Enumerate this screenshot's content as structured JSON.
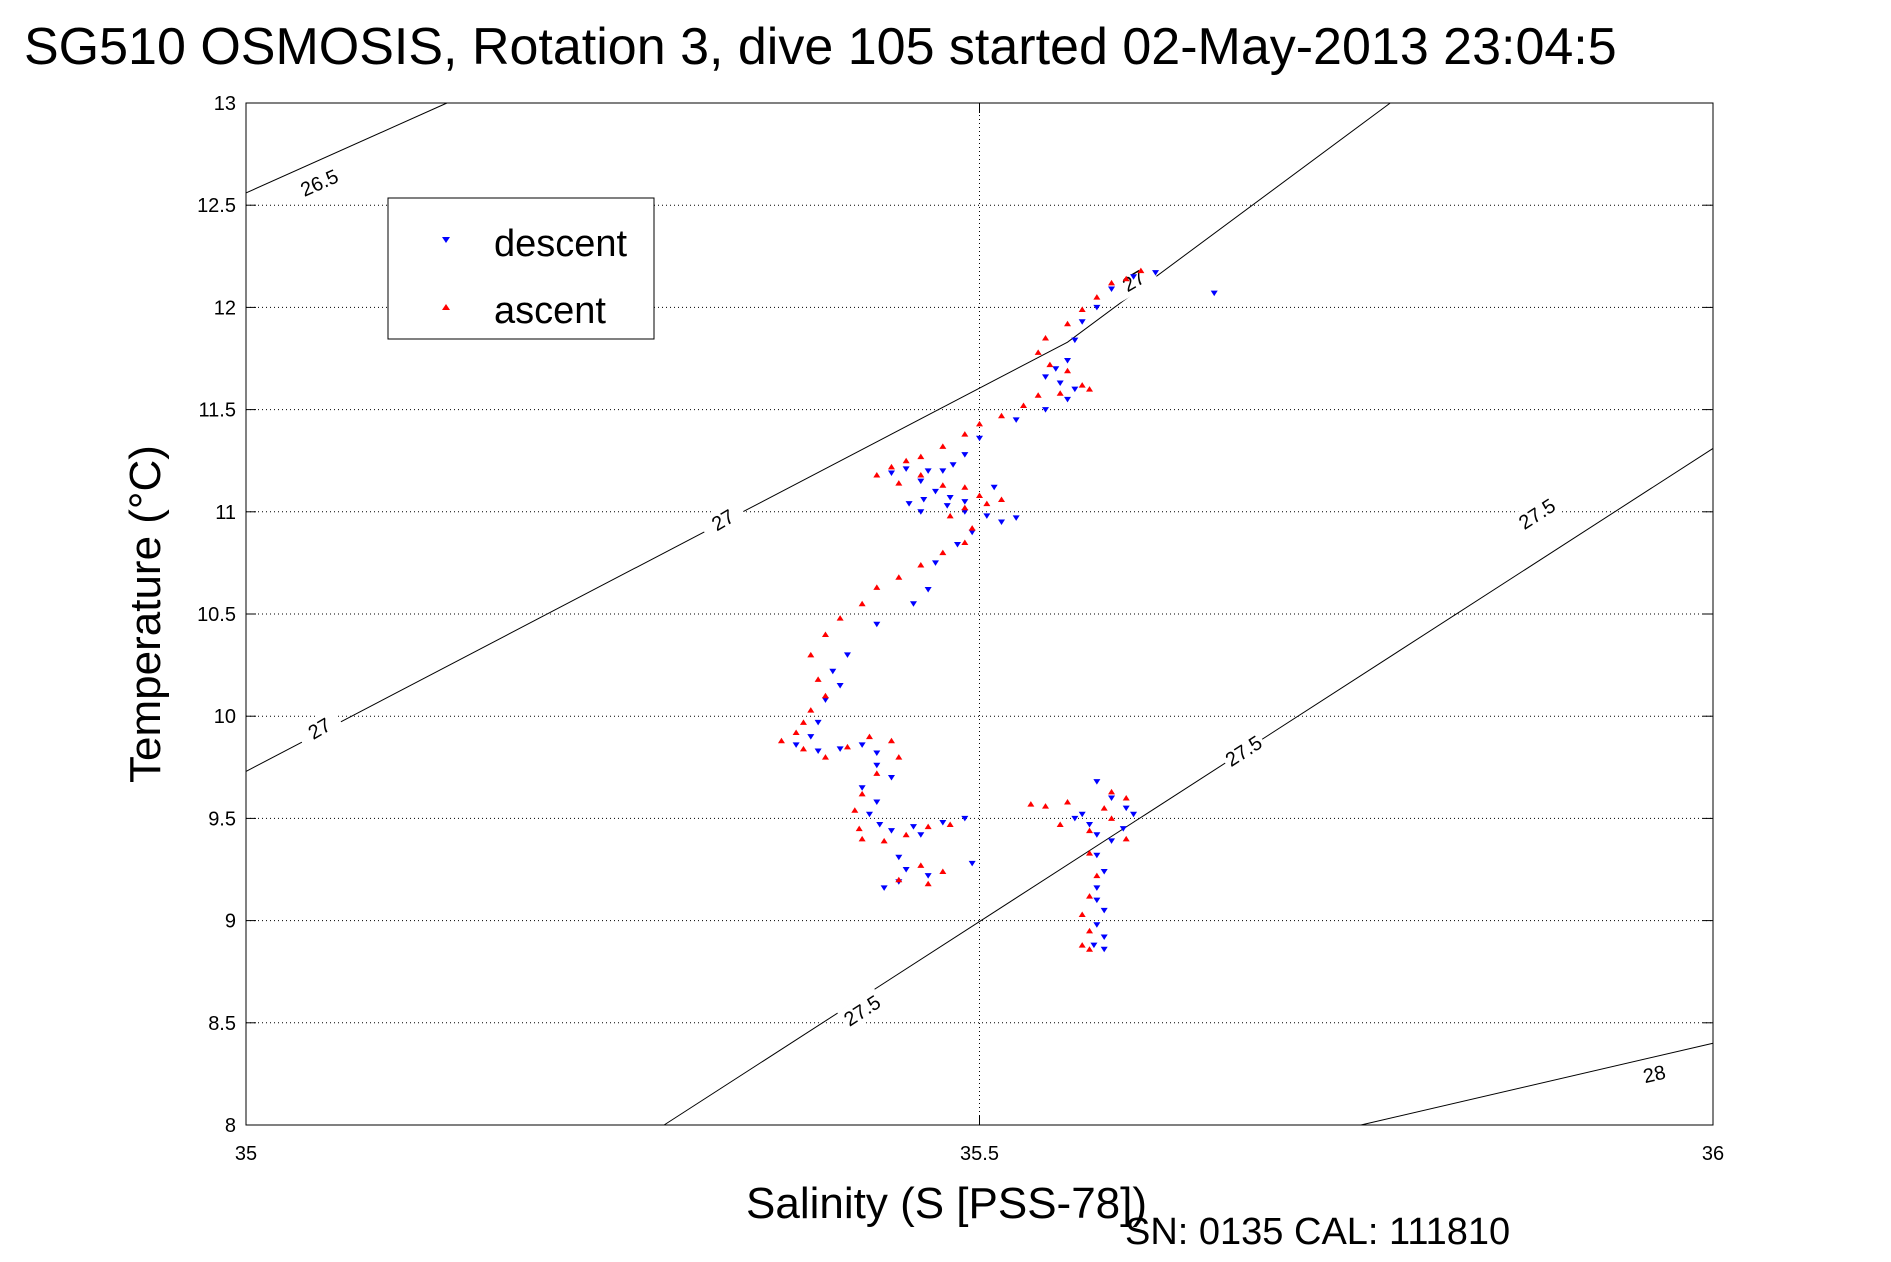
{
  "chart_data": {
    "type": "scatter",
    "title": "SG510 OSMOSIS, Rotation 3, dive 105 started 02-May-2013 23:04:5",
    "xlabel": "Salinity (S [PSS-78])",
    "ylabel": "Temperature (°C)",
    "xlim": [
      35,
      36
    ],
    "ylim": [
      8,
      13
    ],
    "x_ticks": [
      35,
      35.5,
      36
    ],
    "x_tick_labels": [
      "35",
      "35.5",
      "36"
    ],
    "y_ticks": [
      8,
      8.5,
      9,
      9.5,
      10,
      10.5,
      11,
      11.5,
      12,
      12.5,
      13
    ],
    "y_tick_labels": [
      "8",
      "8.5",
      "9",
      "9.5",
      "10",
      "10.5",
      "11",
      "11.5",
      "12",
      "12.5",
      "13"
    ],
    "grid": true,
    "grid_style": "dotted",
    "legend_position": "top-left",
    "footer_text": "SN: 0135  CAL: 111810",
    "density_contours": [
      {
        "label": "26.5",
        "points": [
          [
            35,
            12.56
          ],
          [
            35.137,
            13
          ]
        ],
        "label_at": [
          [
            35.05,
            12.61
          ]
        ]
      },
      {
        "label": "27",
        "points": [
          [
            35,
            9.73
          ],
          [
            35.56,
            11.83
          ],
          [
            35.78,
            13
          ]
        ],
        "label_at": [
          [
            35.05,
            9.94
          ],
          [
            35.325,
            10.96
          ],
          [
            35.605,
            12.13
          ]
        ]
      },
      {
        "label": "27.5",
        "points": [
          [
            35.285,
            8
          ],
          [
            36,
            11.31
          ]
        ],
        "label_at": [
          [
            35.42,
            8.56
          ],
          [
            35.68,
            9.83
          ],
          [
            35.88,
            10.99
          ]
        ]
      },
      {
        "label": "28",
        "points": [
          [
            35.76,
            8
          ],
          [
            36,
            8.4
          ]
        ],
        "label_at": [
          [
            35.96,
            8.25
          ]
        ]
      }
    ],
    "series": [
      {
        "name": "descent",
        "color": "#0000ff",
        "marker": "triangle-down",
        "points": [
          [
            35.66,
            12.07
          ],
          [
            35.62,
            12.17
          ],
          [
            35.605,
            12.15
          ],
          [
            35.59,
            12.09
          ],
          [
            35.58,
            12.0
          ],
          [
            35.57,
            11.93
          ],
          [
            35.565,
            11.84
          ],
          [
            35.56,
            11.74
          ],
          [
            35.552,
            11.7
          ],
          [
            35.545,
            11.66
          ],
          [
            35.555,
            11.63
          ],
          [
            35.565,
            11.6
          ],
          [
            35.56,
            11.55
          ],
          [
            35.545,
            11.5
          ],
          [
            35.525,
            11.45
          ],
          [
            35.5,
            11.36
          ],
          [
            35.49,
            11.28
          ],
          [
            35.482,
            11.23
          ],
          [
            35.475,
            11.2
          ],
          [
            35.465,
            11.2
          ],
          [
            35.45,
            11.21
          ],
          [
            35.44,
            11.19
          ],
          [
            35.46,
            11.15
          ],
          [
            35.47,
            11.1
          ],
          [
            35.48,
            11.07
          ],
          [
            35.49,
            11.05
          ],
          [
            35.478,
            11.03
          ],
          [
            35.462,
            11.06
          ],
          [
            35.452,
            11.04
          ],
          [
            35.46,
            11.0
          ],
          [
            35.49,
            11.0
          ],
          [
            35.505,
            10.98
          ],
          [
            35.515,
            10.95
          ],
          [
            35.525,
            10.97
          ],
          [
            35.51,
            11.12
          ],
          [
            35.495,
            10.9
          ],
          [
            35.485,
            10.84
          ],
          [
            35.47,
            10.75
          ],
          [
            35.465,
            10.62
          ],
          [
            35.455,
            10.55
          ],
          [
            35.43,
            10.45
          ],
          [
            35.41,
            10.3
          ],
          [
            35.4,
            10.22
          ],
          [
            35.405,
            10.15
          ],
          [
            35.395,
            10.08
          ],
          [
            35.39,
            9.97
          ],
          [
            35.385,
            9.9
          ],
          [
            35.375,
            9.86
          ],
          [
            35.39,
            9.83
          ],
          [
            35.405,
            9.84
          ],
          [
            35.42,
            9.86
          ],
          [
            35.43,
            9.82
          ],
          [
            35.43,
            9.76
          ],
          [
            35.44,
            9.7
          ],
          [
            35.42,
            9.65
          ],
          [
            35.43,
            9.58
          ],
          [
            35.425,
            9.52
          ],
          [
            35.432,
            9.47
          ],
          [
            35.44,
            9.44
          ],
          [
            35.455,
            9.46
          ],
          [
            35.475,
            9.48
          ],
          [
            35.49,
            9.5
          ],
          [
            35.46,
            9.42
          ],
          [
            35.445,
            9.31
          ],
          [
            35.45,
            9.25
          ],
          [
            35.465,
            9.22
          ],
          [
            35.435,
            9.16
          ],
          [
            35.445,
            9.19
          ],
          [
            35.495,
            9.28
          ],
          [
            35.57,
            9.52
          ],
          [
            35.575,
            9.47
          ],
          [
            35.58,
            9.42
          ],
          [
            35.59,
            9.39
          ],
          [
            35.58,
            9.32
          ],
          [
            35.585,
            9.24
          ],
          [
            35.58,
            9.16
          ],
          [
            35.58,
            9.1
          ],
          [
            35.585,
            9.05
          ],
          [
            35.58,
            8.98
          ],
          [
            35.585,
            8.92
          ],
          [
            35.578,
            8.88
          ],
          [
            35.585,
            8.86
          ],
          [
            35.598,
            9.45
          ],
          [
            35.605,
            9.52
          ],
          [
            35.59,
            9.6
          ],
          [
            35.6,
            9.55
          ],
          [
            35.58,
            9.68
          ],
          [
            35.565,
            9.5
          ]
        ]
      },
      {
        "name": "ascent",
        "color": "#ff0000",
        "marker": "triangle-up",
        "points": [
          [
            35.61,
            12.18
          ],
          [
            35.6,
            12.14
          ],
          [
            35.59,
            12.12
          ],
          [
            35.58,
            12.05
          ],
          [
            35.57,
            11.99
          ],
          [
            35.56,
            11.92
          ],
          [
            35.545,
            11.85
          ],
          [
            35.54,
            11.78
          ],
          [
            35.548,
            11.72
          ],
          [
            35.56,
            11.69
          ],
          [
            35.57,
            11.62
          ],
          [
            35.575,
            11.6
          ],
          [
            35.555,
            11.58
          ],
          [
            35.54,
            11.57
          ],
          [
            35.53,
            11.52
          ],
          [
            35.515,
            11.47
          ],
          [
            35.5,
            11.43
          ],
          [
            35.49,
            11.38
          ],
          [
            35.475,
            11.32
          ],
          [
            35.46,
            11.27
          ],
          [
            35.45,
            11.25
          ],
          [
            35.44,
            11.22
          ],
          [
            35.43,
            11.18
          ],
          [
            35.445,
            11.14
          ],
          [
            35.46,
            11.18
          ],
          [
            35.475,
            11.13
          ],
          [
            35.49,
            11.12
          ],
          [
            35.5,
            11.08
          ],
          [
            35.505,
            11.04
          ],
          [
            35.515,
            11.06
          ],
          [
            35.49,
            11.02
          ],
          [
            35.48,
            10.98
          ],
          [
            35.495,
            10.92
          ],
          [
            35.49,
            10.85
          ],
          [
            35.475,
            10.8
          ],
          [
            35.46,
            10.74
          ],
          [
            35.445,
            10.68
          ],
          [
            35.43,
            10.63
          ],
          [
            35.42,
            10.55
          ],
          [
            35.405,
            10.48
          ],
          [
            35.395,
            10.4
          ],
          [
            35.385,
            10.3
          ],
          [
            35.39,
            10.18
          ],
          [
            35.395,
            10.1
          ],
          [
            35.385,
            10.03
          ],
          [
            35.38,
            9.97
          ],
          [
            35.375,
            9.92
          ],
          [
            35.365,
            9.88
          ],
          [
            35.38,
            9.84
          ],
          [
            35.395,
            9.8
          ],
          [
            35.41,
            9.85
          ],
          [
            35.425,
            9.9
          ],
          [
            35.44,
            9.88
          ],
          [
            35.445,
            9.8
          ],
          [
            35.43,
            9.72
          ],
          [
            35.42,
            9.62
          ],
          [
            35.415,
            9.54
          ],
          [
            35.418,
            9.45
          ],
          [
            35.42,
            9.4
          ],
          [
            35.435,
            9.39
          ],
          [
            35.45,
            9.42
          ],
          [
            35.465,
            9.46
          ],
          [
            35.48,
            9.47
          ],
          [
            35.46,
            9.27
          ],
          [
            35.445,
            9.2
          ],
          [
            35.465,
            9.18
          ],
          [
            35.475,
            9.24
          ],
          [
            35.535,
            9.57
          ],
          [
            35.545,
            9.56
          ],
          [
            35.56,
            9.58
          ],
          [
            35.59,
            9.63
          ],
          [
            35.6,
            9.6
          ],
          [
            35.585,
            9.55
          ],
          [
            35.575,
            9.44
          ],
          [
            35.575,
            9.33
          ],
          [
            35.58,
            9.22
          ],
          [
            35.575,
            9.12
          ],
          [
            35.57,
            9.03
          ],
          [
            35.575,
            8.95
          ],
          [
            35.57,
            8.88
          ],
          [
            35.575,
            8.86
          ],
          [
            35.59,
            9.5
          ],
          [
            35.6,
            9.4
          ],
          [
            35.555,
            9.47
          ]
        ]
      }
    ]
  }
}
